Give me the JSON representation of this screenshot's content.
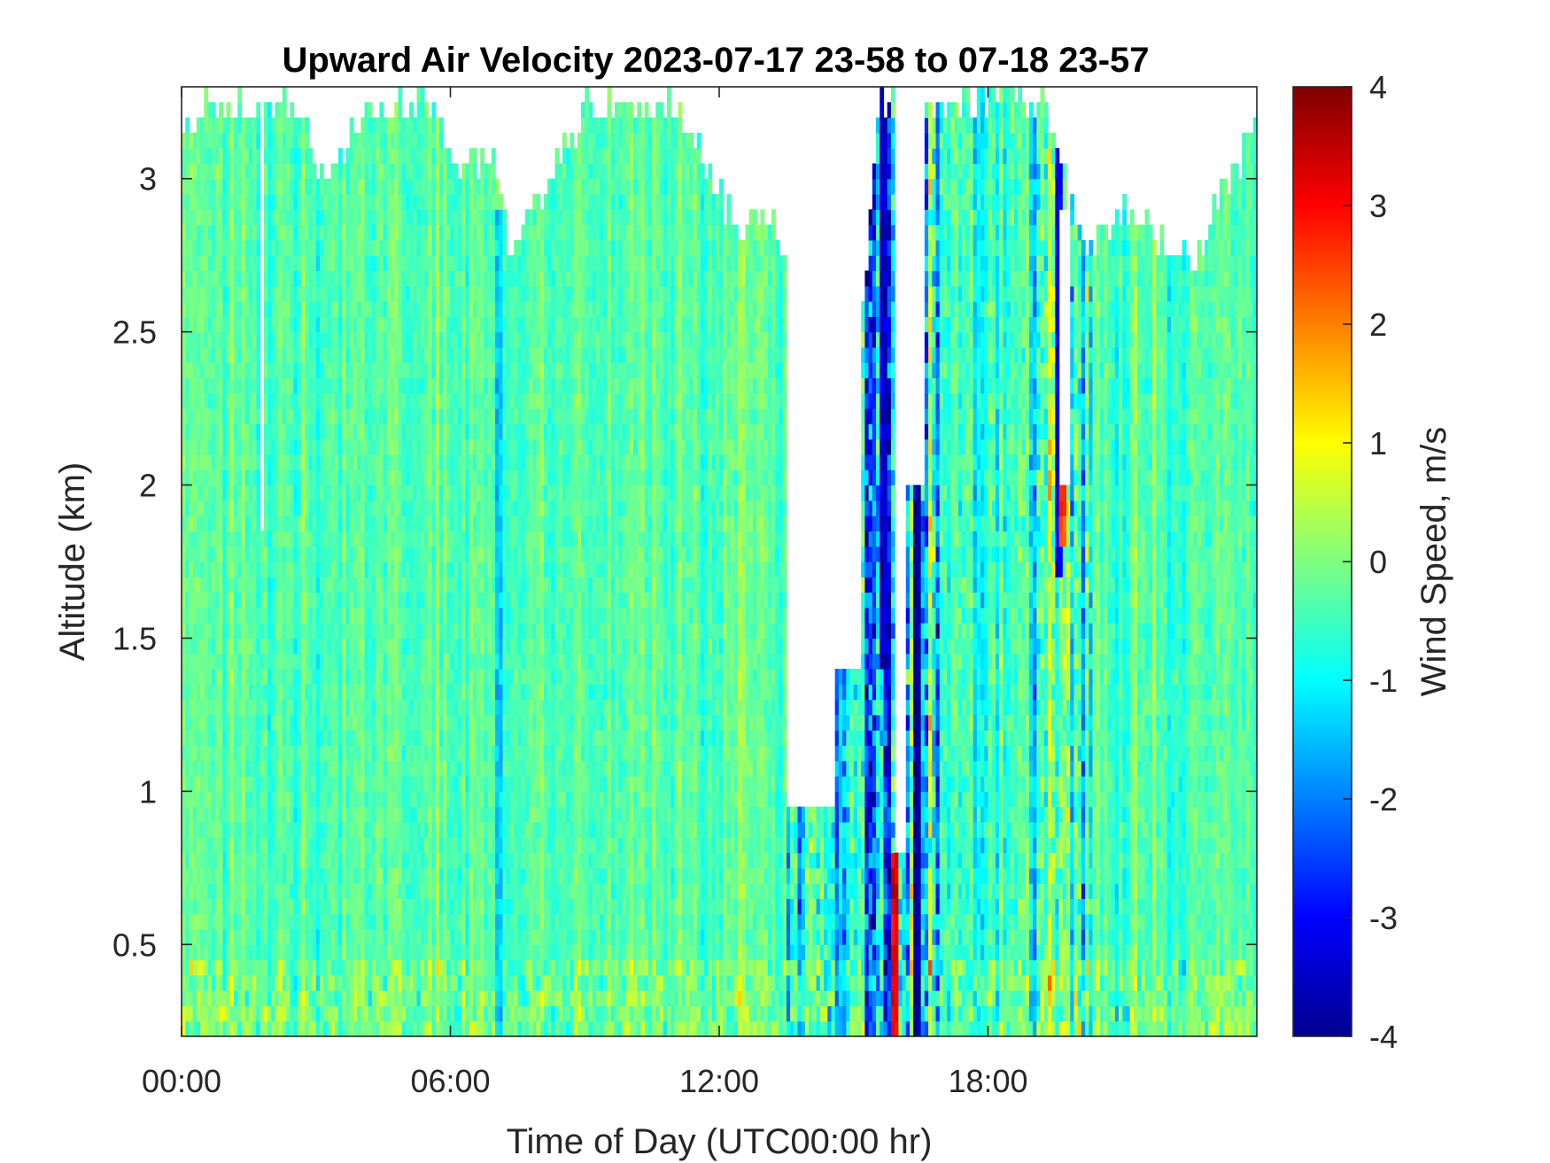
{
  "chart_data": {
    "type": "heatmap",
    "title": "Upward Air Velocity 2023-07-17 23-58 to 07-18 23-57",
    "xlabel": "Time of Day (UTC00:00 hr)",
    "ylabel": "Altitude (km)",
    "x_unit": "hours (UTC)",
    "xlim": [
      0,
      24
    ],
    "ylim": [
      0.2,
      3.3
    ],
    "x_ticks": [
      0,
      6,
      12,
      18
    ],
    "x_tick_labels": [
      "00:00",
      "06:00",
      "12:00",
      "18:00"
    ],
    "y_ticks": [
      0.5,
      1,
      1.5,
      2,
      2.5,
      3
    ],
    "y_tick_labels": [
      "0.5",
      "1",
      "1.5",
      "2",
      "2.5",
      "3"
    ],
    "colorbar": {
      "label": "Wind Speed, m/s",
      "clim": [
        -4,
        4
      ],
      "ticks": [
        -4,
        -3,
        -2,
        -1,
        0,
        1,
        2,
        3,
        4
      ],
      "tick_labels": [
        "-4",
        "-3",
        "-2",
        "-1",
        "0",
        "1",
        "2",
        "3",
        "4"
      ],
      "colormap": "jet"
    },
    "data_top_altitude_km": [
      [
        0,
        3.18
      ],
      [
        0.5,
        3.3
      ],
      [
        1.0,
        3.3
      ],
      [
        1.8,
        3.3
      ],
      [
        2.5,
        3.3
      ],
      [
        3.3,
        3.05
      ],
      [
        4.0,
        3.3
      ],
      [
        5.5,
        3.3
      ],
      [
        6.2,
        3.1
      ],
      [
        7.0,
        3.1
      ],
      [
        7.3,
        2.85
      ],
      [
        8.2,
        3.05
      ],
      [
        9.0,
        3.3
      ],
      [
        10.0,
        3.3
      ],
      [
        11.0,
        3.3
      ],
      [
        11.8,
        3.1
      ],
      [
        12.3,
        2.9
      ],
      [
        13.0,
        2.95
      ],
      [
        13.8,
        2.7
      ],
      [
        14.6,
        2.6
      ],
      [
        15.2,
        2.65
      ],
      [
        15.6,
        3.3
      ],
      [
        16.0,
        3.3
      ],
      [
        16.9,
        3.3
      ],
      [
        18.0,
        3.3
      ],
      [
        19.2,
        3.3
      ],
      [
        19.8,
        3.0
      ],
      [
        20.2,
        2.8
      ],
      [
        21.0,
        2.95
      ],
      [
        21.8,
        2.85
      ],
      [
        22.6,
        2.8
      ],
      [
        23.2,
        3.0
      ],
      [
        24.0,
        3.25
      ]
    ],
    "data_gaps": [
      {
        "x_from": 1.75,
        "x_to": 1.85,
        "y_from": 1.85,
        "y_to": 3.3
      },
      {
        "x_from": 13.5,
        "x_to": 14.6,
        "y_from": 0.95,
        "y_to": 3.3
      },
      {
        "x_from": 14.6,
        "x_to": 15.2,
        "y_from": 1.4,
        "y_to": 3.3
      },
      {
        "x_from": 15.9,
        "x_to": 16.2,
        "y_from": 0.8,
        "y_to": 3.3
      },
      {
        "x_from": 16.2,
        "x_to": 16.6,
        "y_from": 2.0,
        "y_to": 3.3
      },
      {
        "x_from": 19.6,
        "x_to": 19.8,
        "y_from": 2.0,
        "y_to": 2.9
      }
    ],
    "value_regimes": [
      {
        "x_from": 0,
        "x_to": 13.5,
        "mean_ms": -0.3,
        "spread_ms": 0.55
      },
      {
        "x_from": 13.5,
        "x_to": 15.2,
        "mean_ms": -0.8,
        "spread_ms": 1.4
      },
      {
        "x_from": 15.2,
        "x_to": 16.9,
        "mean_ms": -1.2,
        "spread_ms": 2.2
      },
      {
        "x_from": 16.9,
        "x_to": 19.0,
        "mean_ms": -0.6,
        "spread_ms": 0.9
      },
      {
        "x_from": 19.0,
        "x_to": 20.3,
        "mean_ms": -0.7,
        "spread_ms": 1.5
      },
      {
        "x_from": 20.3,
        "x_to": 24,
        "mean_ms": -0.35,
        "spread_ms": 0.6
      }
    ],
    "notable_columns": [
      {
        "x": 15.95,
        "y_from": 0.2,
        "y_to": 0.8,
        "value_ms": 3.2
      },
      {
        "x": 16.4,
        "y_from": 0.2,
        "y_to": 2.0,
        "value_ms": -3.8
      },
      {
        "x": 15.65,
        "y_from": 1.4,
        "y_to": 3.3,
        "value_ms": -3.5
      },
      {
        "x": 19.6,
        "y_from": 1.7,
        "y_to": 3.3,
        "value_ms": -3.2
      },
      {
        "x": 19.65,
        "y_from": 1.8,
        "y_to": 2.0,
        "value_ms": 2.5
      },
      {
        "x": 7.1,
        "y_from": 0.2,
        "y_to": 2.9,
        "value_ms": -1.4
      }
    ]
  }
}
